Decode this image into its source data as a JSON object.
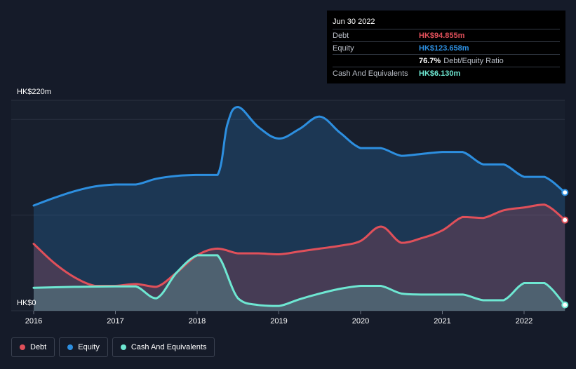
{
  "colors": {
    "debt": "#e0505a",
    "equity": "#2d8fe0",
    "cash": "#6ee7d2",
    "background": "#151b29",
    "grid": "#2a3140"
  },
  "tooltip": {
    "date": "Jun 30 2022",
    "rows": [
      {
        "label": "Debt",
        "value": "HK$94.855m",
        "color": "#e0505a"
      },
      {
        "label": "Equity",
        "value": "HK$123.658m",
        "color": "#2d8fe0"
      },
      {
        "label": "",
        "ratio_pct": "76.7%",
        "ratio_label": "Debt/Equity Ratio"
      },
      {
        "label": "Cash And Equivalents",
        "value": "HK$6.130m",
        "color": "#6ee7d2"
      }
    ]
  },
  "legend": [
    {
      "label": "Debt",
      "color": "#e0505a"
    },
    {
      "label": "Equity",
      "color": "#2d8fe0"
    },
    {
      "label": "Cash And Equivalents",
      "color": "#6ee7d2"
    }
  ],
  "chart_data": {
    "type": "area",
    "y_unit": "HK$m",
    "ylim": [
      0,
      220
    ],
    "xlim": [
      2015.87,
      2022.5
    ],
    "y_tick_labels": [
      {
        "value": 220,
        "label": "HK$220m"
      },
      {
        "value": 0,
        "label": "HK$0"
      }
    ],
    "x_ticks": [
      {
        "value": 2016,
        "label": "2016"
      },
      {
        "value": 2017,
        "label": "2017"
      },
      {
        "value": 2018,
        "label": "2018"
      },
      {
        "value": 2019,
        "label": "2019"
      },
      {
        "value": 2020,
        "label": "2020"
      },
      {
        "value": 2021,
        "label": "2021"
      },
      {
        "value": 2022,
        "label": "2022"
      }
    ],
    "grid_values": [
      0,
      100,
      200,
      220
    ],
    "series": [
      {
        "name": "Equity",
        "key": "equity",
        "points": [
          [
            2016.0,
            110
          ],
          [
            2016.25,
            118
          ],
          [
            2016.5,
            125
          ],
          [
            2016.75,
            130
          ],
          [
            2017.0,
            132
          ],
          [
            2017.25,
            132
          ],
          [
            2017.5,
            138
          ],
          [
            2017.75,
            141
          ],
          [
            2018.0,
            142
          ],
          [
            2018.25,
            142
          ],
          [
            2018.37,
            195
          ],
          [
            2018.5,
            213
          ],
          [
            2018.75,
            192
          ],
          [
            2019.0,
            180
          ],
          [
            2019.25,
            190
          ],
          [
            2019.5,
            203
          ],
          [
            2019.75,
            186
          ],
          [
            2020.0,
            170
          ],
          [
            2020.25,
            170
          ],
          [
            2020.5,
            162
          ],
          [
            2020.75,
            164
          ],
          [
            2021.0,
            166
          ],
          [
            2021.25,
            166
          ],
          [
            2021.5,
            153
          ],
          [
            2021.75,
            153
          ],
          [
            2022.0,
            140
          ],
          [
            2022.25,
            140
          ],
          [
            2022.5,
            123.658
          ]
        ]
      },
      {
        "name": "Debt",
        "key": "debt",
        "points": [
          [
            2016.0,
            70
          ],
          [
            2016.25,
            50
          ],
          [
            2016.5,
            35
          ],
          [
            2016.75,
            26
          ],
          [
            2017.0,
            26
          ],
          [
            2017.25,
            28
          ],
          [
            2017.5,
            25
          ],
          [
            2017.75,
            40
          ],
          [
            2018.0,
            58
          ],
          [
            2018.25,
            65
          ],
          [
            2018.5,
            60
          ],
          [
            2018.75,
            60
          ],
          [
            2019.0,
            59
          ],
          [
            2019.25,
            62
          ],
          [
            2019.5,
            65
          ],
          [
            2019.75,
            68
          ],
          [
            2020.0,
            73
          ],
          [
            2020.25,
            88
          ],
          [
            2020.5,
            71
          ],
          [
            2020.75,
            76
          ],
          [
            2021.0,
            84
          ],
          [
            2021.25,
            98
          ],
          [
            2021.5,
            97
          ],
          [
            2021.75,
            105
          ],
          [
            2022.0,
            108
          ],
          [
            2022.25,
            111
          ],
          [
            2022.5,
            94.855
          ]
        ]
      },
      {
        "name": "Cash And Equivalents",
        "key": "cash",
        "points": [
          [
            2016.0,
            24
          ],
          [
            2016.5,
            25
          ],
          [
            2017.0,
            25.5
          ],
          [
            2017.25,
            25.5
          ],
          [
            2017.5,
            13
          ],
          [
            2017.75,
            40
          ],
          [
            2018.0,
            58
          ],
          [
            2018.25,
            58
          ],
          [
            2018.5,
            13
          ],
          [
            2018.75,
            6
          ],
          [
            2019.0,
            5
          ],
          [
            2019.25,
            12
          ],
          [
            2019.5,
            18
          ],
          [
            2019.75,
            23
          ],
          [
            2020.0,
            26
          ],
          [
            2020.25,
            26
          ],
          [
            2020.5,
            18
          ],
          [
            2020.75,
            17
          ],
          [
            2021.0,
            17
          ],
          [
            2021.25,
            17
          ],
          [
            2021.5,
            11
          ],
          [
            2021.75,
            11
          ],
          [
            2022.0,
            29
          ],
          [
            2022.25,
            29
          ],
          [
            2022.5,
            6.13
          ]
        ]
      }
    ]
  }
}
